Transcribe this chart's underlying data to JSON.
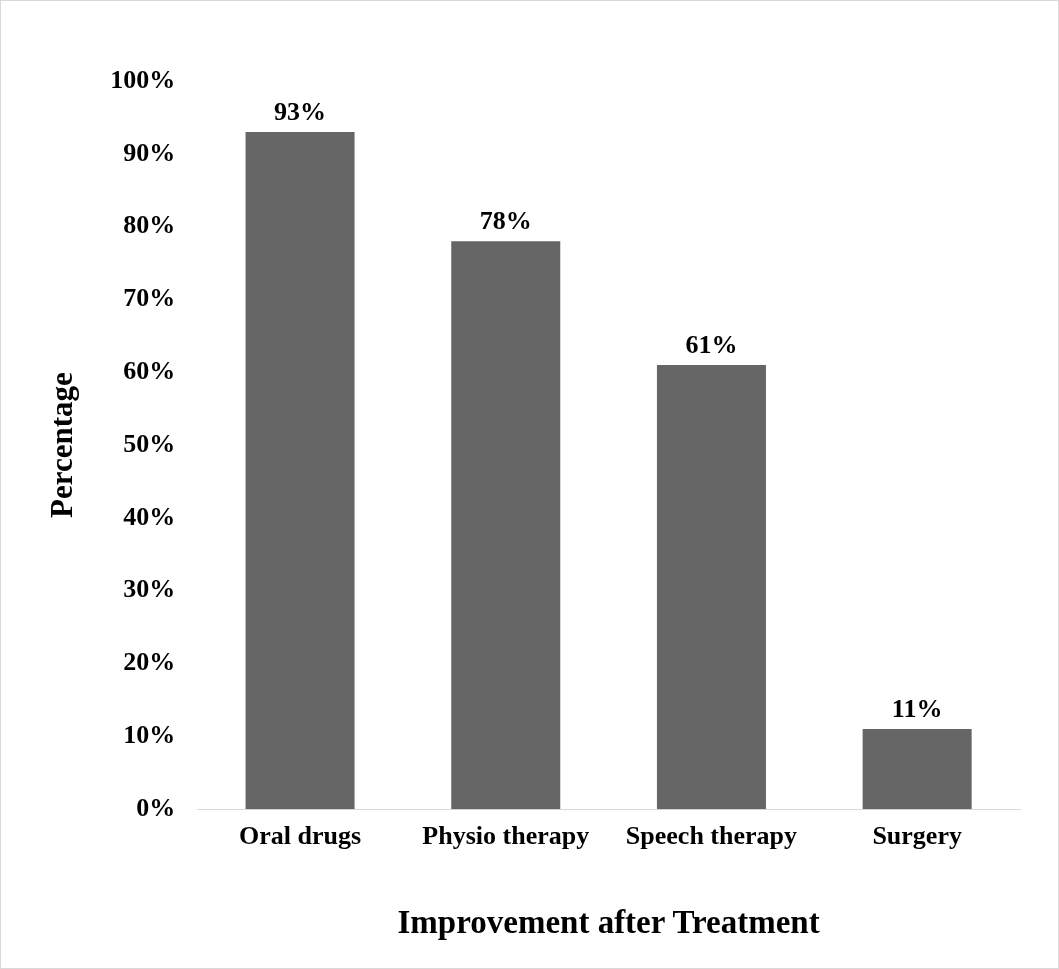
{
  "chart_data": {
    "type": "bar",
    "xlabel": "Improvement after Treatment",
    "ylabel": "Percentage",
    "categories": [
      "Oral drugs",
      "Physio therapy",
      "Speech therapy",
      "Surgery"
    ],
    "values": [
      93,
      78,
      61,
      11
    ],
    "color": "#666666",
    "value_labels": [
      "93%",
      "78%",
      "61%",
      "11%"
    ],
    "ylim": [
      0,
      100
    ],
    "yticks": [
      {
        "value": 0,
        "label": "0%"
      },
      {
        "value": 10,
        "label": "10%"
      },
      {
        "value": 20,
        "label": "20%"
      },
      {
        "value": 30,
        "label": "30%"
      },
      {
        "value": 40,
        "label": "40%"
      },
      {
        "value": 50,
        "label": "50%"
      },
      {
        "value": 60,
        "label": "60%"
      },
      {
        "value": 70,
        "label": "70%"
      },
      {
        "value": 80,
        "label": "80%"
      },
      {
        "value": 90,
        "label": "90%"
      },
      {
        "value": 100,
        "label": "100%"
      }
    ],
    "grid": false,
    "legend": false
  }
}
